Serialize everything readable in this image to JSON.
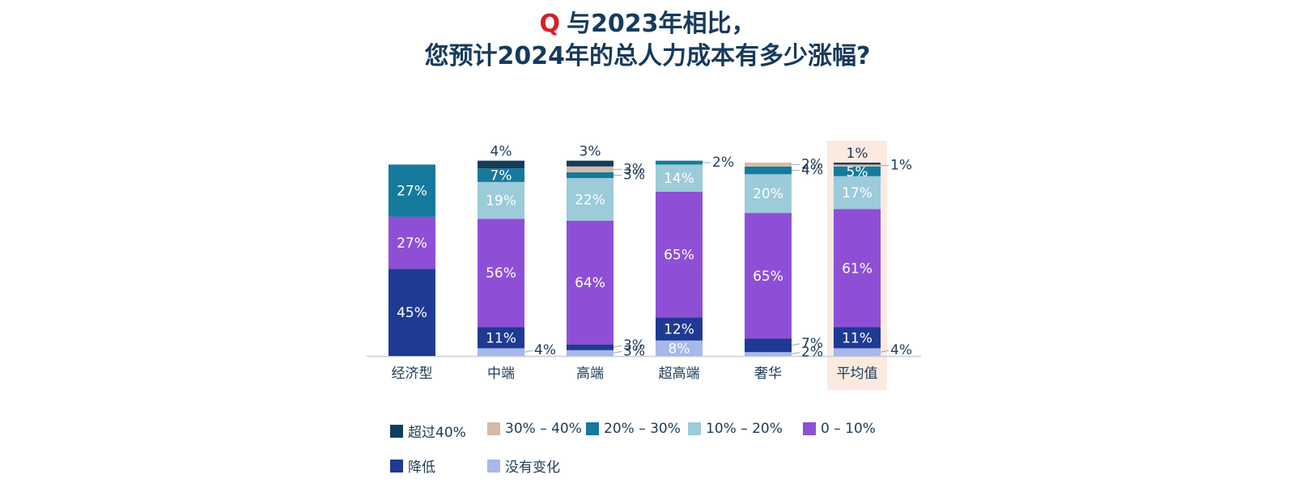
{
  "title": {
    "q_mark": "Q",
    "line1": "与2023年相比，",
    "line2": "您预计2024年的总人力成本有多少涨幅?"
  },
  "chart_data": {
    "type": "bar",
    "stacked": true,
    "categories": [
      "经济型",
      "中端",
      "高端",
      "超高端",
      "奢华",
      "平均值"
    ],
    "highlight_category": "平均值",
    "highlight_color": "#fbeae0",
    "ylim": [
      0,
      100
    ],
    "series": [
      {
        "name": "没有变化",
        "color": "#a6b8ec",
        "values": [
          0,
          4,
          3,
          8,
          2,
          4
        ],
        "labels": [
          "",
          "4%",
          "3%",
          "8%",
          "2%",
          "4%"
        ]
      },
      {
        "name": "降低",
        "color": "#1f3a93",
        "values": [
          45,
          11,
          3,
          12,
          7,
          11
        ],
        "labels": [
          "45%",
          "11%",
          "3%",
          "12%",
          "7%",
          "11%"
        ]
      },
      {
        "name": "0 – 10%",
        "color": "#8e4fd6",
        "values": [
          27,
          56,
          64,
          65,
          65,
          61
        ],
        "labels": [
          "27%",
          "56%",
          "64%",
          "65%",
          "65%",
          "61%"
        ]
      },
      {
        "name": "10% – 20%",
        "color": "#9ccbd9",
        "values": [
          0,
          19,
          22,
          14,
          20,
          17
        ],
        "labels": [
          "",
          "19%",
          "22%",
          "14%",
          "20%",
          "17%"
        ]
      },
      {
        "name": "20% – 30%",
        "color": "#157a9c",
        "values": [
          27,
          7,
          3,
          2,
          4,
          5
        ],
        "labels": [
          "27%",
          "7%",
          "3%",
          "2%",
          "4%",
          "5%"
        ]
      },
      {
        "name": "30% – 40%",
        "color": "#d3bba8",
        "values": [
          0,
          0,
          3,
          0,
          2,
          1
        ],
        "labels": [
          "",
          "",
          "3%",
          "",
          "2%",
          "1%"
        ]
      },
      {
        "name": "超过40%",
        "color": "#123e5c",
        "values": [
          0,
          4,
          3,
          0,
          0,
          1
        ],
        "labels": [
          "",
          "4%",
          "3%",
          "",
          "",
          "1%"
        ]
      }
    ],
    "legend": [
      {
        "name": "超过40%",
        "color": "#123e5c"
      },
      {
        "name": "30% – 40%",
        "color": "#d3bba8"
      },
      {
        "name": "20% – 30%",
        "color": "#157a9c"
      },
      {
        "name": "10% – 20%",
        "color": "#9ccbd9"
      },
      {
        "name": "0 – 10%",
        "color": "#8e4fd6"
      },
      {
        "name": "降低",
        "color": "#1f3a93"
      },
      {
        "name": "没有变化",
        "color": "#a6b8ec"
      }
    ]
  }
}
